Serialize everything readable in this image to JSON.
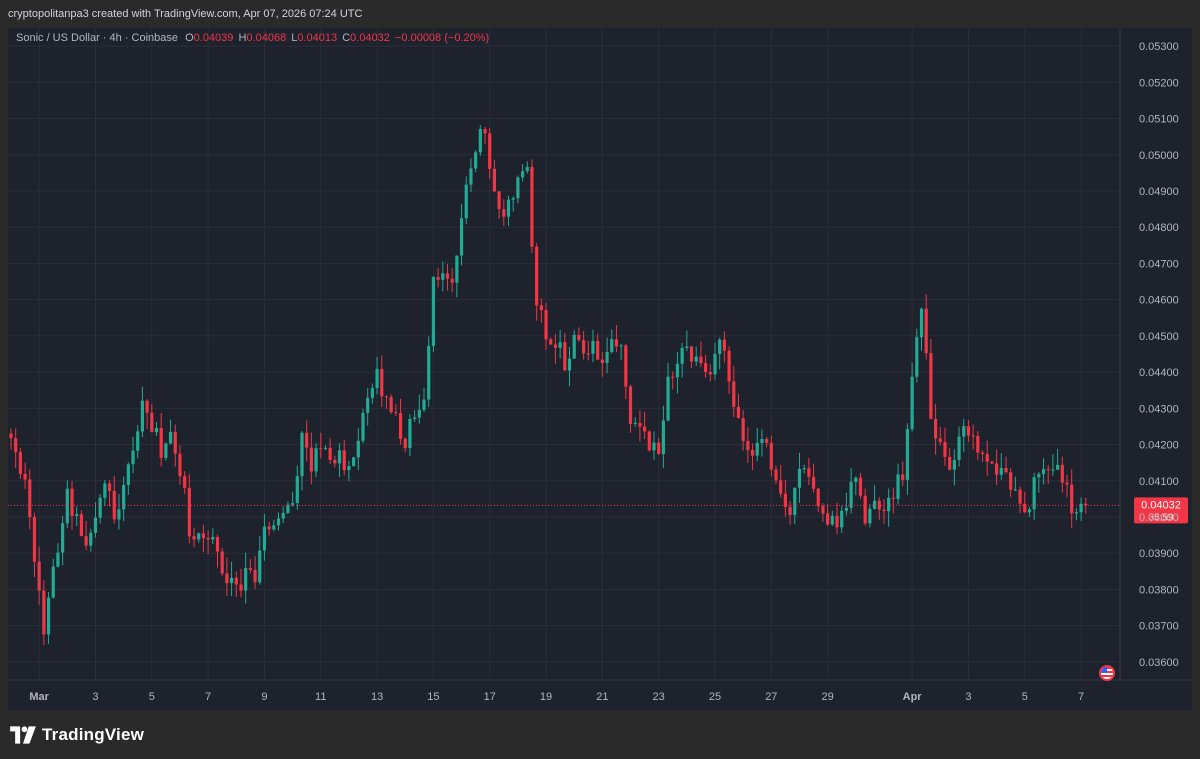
{
  "header": {
    "created_text": "cryptopolitanpa3 created with TradingView.com, Apr 07, 2026 07:24 UTC"
  },
  "legend": {
    "symbol": "Sonic / US Dollar · 4h · Coinbase",
    "open_label": "O",
    "open": "0.04039",
    "high_label": "H",
    "high": "0.04068",
    "low_label": "L",
    "low": "0.04013",
    "close_label": "C",
    "close": "0.04032",
    "change": "−0.00008 (−0.20%)"
  },
  "price_tag": {
    "price": "0.04032",
    "countdown": "35:59"
  },
  "brand": {
    "name": "TradingView"
  },
  "colors": {
    "up": "#22ab94",
    "down": "#f23645",
    "grid": "#2a2e39",
    "background": "#1e222d",
    "axis_text": "#b2b5be"
  },
  "chart_data": {
    "type": "candlestick",
    "ylim": [
      0.0355,
      0.0535
    ],
    "y_ticks": [
      "0.03600",
      "0.03700",
      "0.03800",
      "0.03900",
      "0.04000",
      "0.04100",
      "0.04200",
      "0.04300",
      "0.04400",
      "0.04500",
      "0.04600",
      "0.04700",
      "0.04800",
      "0.04900",
      "0.05000",
      "0.05100",
      "0.05200",
      "0.05300"
    ],
    "x_ticks": [
      "Mar",
      "3",
      "5",
      "7",
      "9",
      "11",
      "13",
      "15",
      "17",
      "19",
      "21",
      "23",
      "25",
      "27",
      "29",
      "Apr",
      "3",
      "5",
      "7"
    ],
    "x_tick_dates": [
      "2026-03-01",
      "2026-03-03",
      "2026-03-05",
      "2026-03-07",
      "2026-03-09",
      "2026-03-11",
      "2026-03-13",
      "2026-03-15",
      "2026-03-17",
      "2026-03-19",
      "2026-03-21",
      "2026-03-23",
      "2026-03-25",
      "2026-03-27",
      "2026-03-29",
      "2026-04-01",
      "2026-04-03",
      "2026-04-05",
      "2026-04-07"
    ],
    "first_candle_date": "2026-02-28T00:00",
    "interval_hours": 4,
    "current_price": 0.04032,
    "close_path": [
      [
        "2026-02-28T00:00",
        0.0422
      ],
      [
        "2026-02-28T08:00",
        0.0413
      ],
      [
        "2026-02-28T16:00",
        0.0402
      ],
      [
        "2026-03-01T00:00",
        0.0378
      ],
      [
        "2026-03-01T04:00",
        0.0369
      ],
      [
        "2026-03-01T08:00",
        0.0376
      ],
      [
        "2026-03-01T16:00",
        0.0392
      ],
      [
        "2026-03-02T00:00",
        0.0407
      ],
      [
        "2026-03-02T08:00",
        0.0399
      ],
      [
        "2026-03-02T16:00",
        0.039
      ],
      [
        "2026-03-03T00:00",
        0.0397
      ],
      [
        "2026-03-03T08:00",
        0.041
      ],
      [
        "2026-03-03T16:00",
        0.04
      ],
      [
        "2026-03-04T00:00",
        0.0408
      ],
      [
        "2026-03-04T08:00",
        0.0421
      ],
      [
        "2026-03-04T16:00",
        0.0431
      ],
      [
        "2026-03-05T00:00",
        0.0426
      ],
      [
        "2026-03-05T08:00",
        0.0418
      ],
      [
        "2026-03-05T16:00",
        0.0421
      ],
      [
        "2026-03-06T00:00",
        0.0414
      ],
      [
        "2026-03-06T08:00",
        0.0397
      ],
      [
        "2026-03-06T16:00",
        0.0395
      ],
      [
        "2026-03-07T00:00",
        0.0396
      ],
      [
        "2026-03-07T08:00",
        0.0389
      ],
      [
        "2026-03-07T16:00",
        0.0383
      ],
      [
        "2026-03-08T00:00",
        0.0379
      ],
      [
        "2026-03-08T08:00",
        0.0384
      ],
      [
        "2026-03-08T16:00",
        0.0382
      ],
      [
        "2026-03-09T00:00",
        0.0395
      ],
      [
        "2026-03-09T08:00",
        0.0398
      ],
      [
        "2026-03-09T16:00",
        0.0401
      ],
      [
        "2026-03-10T00:00",
        0.0404
      ],
      [
        "2026-03-10T08:00",
        0.0423
      ],
      [
        "2026-03-10T16:00",
        0.0413
      ],
      [
        "2026-03-11T00:00",
        0.0421
      ],
      [
        "2026-03-11T08:00",
        0.0416
      ],
      [
        "2026-03-11T16:00",
        0.0418
      ],
      [
        "2026-03-12T00:00",
        0.0412
      ],
      [
        "2026-03-12T08:00",
        0.0422
      ],
      [
        "2026-03-12T16:00",
        0.0435
      ],
      [
        "2026-03-13T00:00",
        0.0439
      ],
      [
        "2026-03-13T08:00",
        0.0432
      ],
      [
        "2026-03-13T16:00",
        0.0427
      ],
      [
        "2026-03-14T00:00",
        0.0421
      ],
      [
        "2026-03-14T08:00",
        0.0428
      ],
      [
        "2026-03-14T16:00",
        0.0435
      ],
      [
        "2026-03-15T00:00",
        0.0465
      ],
      [
        "2026-03-15T08:00",
        0.0467
      ],
      [
        "2026-03-15T16:00",
        0.0462
      ],
      [
        "2026-03-16T00:00",
        0.0482
      ],
      [
        "2026-03-16T08:00",
        0.0498
      ],
      [
        "2026-03-16T16:00",
        0.0509
      ],
      [
        "2026-03-17T00:00",
        0.0497
      ],
      [
        "2026-03-17T08:00",
        0.0482
      ],
      [
        "2026-03-17T16:00",
        0.0485
      ],
      [
        "2026-03-18T00:00",
        0.0493
      ],
      [
        "2026-03-18T08:00",
        0.0494
      ],
      [
        "2026-03-18T16:00",
        0.046
      ],
      [
        "2026-03-19T00:00",
        0.0452
      ],
      [
        "2026-03-19T08:00",
        0.0449
      ],
      [
        "2026-03-19T16:00",
        0.0443
      ],
      [
        "2026-03-20T00:00",
        0.0449
      ],
      [
        "2026-03-20T08:00",
        0.0445
      ],
      [
        "2026-03-20T16:00",
        0.0448
      ],
      [
        "2026-03-21T00:00",
        0.0442
      ],
      [
        "2026-03-21T08:00",
        0.0449
      ],
      [
        "2026-03-21T16:00",
        0.0448
      ],
      [
        "2026-03-22T00:00",
        0.0428
      ],
      [
        "2026-03-22T08:00",
        0.0425
      ],
      [
        "2026-03-22T16:00",
        0.0421
      ],
      [
        "2026-03-23T00:00",
        0.0416
      ],
      [
        "2026-03-23T08:00",
        0.0437
      ],
      [
        "2026-03-23T16:00",
        0.0441
      ],
      [
        "2026-03-24T00:00",
        0.0448
      ],
      [
        "2026-03-24T08:00",
        0.0442
      ],
      [
        "2026-03-24T16:00",
        0.0438
      ],
      [
        "2026-03-25T00:00",
        0.0445
      ],
      [
        "2026-03-25T08:00",
        0.0448
      ],
      [
        "2026-03-25T16:00",
        0.0432
      ],
      [
        "2026-03-26T00:00",
        0.0421
      ],
      [
        "2026-03-26T08:00",
        0.0415
      ],
      [
        "2026-03-26T16:00",
        0.0424
      ],
      [
        "2026-03-27T00:00",
        0.0413
      ],
      [
        "2026-03-27T08:00",
        0.0404
      ],
      [
        "2026-03-27T16:00",
        0.0399
      ],
      [
        "2026-03-28T00:00",
        0.0416
      ],
      [
        "2026-03-28T08:00",
        0.041
      ],
      [
        "2026-03-28T16:00",
        0.0404
      ],
      [
        "2026-03-29T00:00",
        0.0399
      ],
      [
        "2026-03-29T08:00",
        0.0398
      ],
      [
        "2026-03-29T16:00",
        0.0405
      ],
      [
        "2026-03-30T00:00",
        0.0409
      ],
      [
        "2026-03-30T08:00",
        0.04
      ],
      [
        "2026-03-30T16:00",
        0.0405
      ],
      [
        "2026-03-31T00:00",
        0.0403
      ],
      [
        "2026-03-31T08:00",
        0.0408
      ],
      [
        "2026-03-31T16:00",
        0.0412
      ],
      [
        "2026-04-01T00:00",
        0.044
      ],
      [
        "2026-04-01T08:00",
        0.046
      ],
      [
        "2026-04-01T16:00",
        0.043
      ],
      [
        "2026-04-02T00:00",
        0.0418
      ],
      [
        "2026-04-02T08:00",
        0.0416
      ],
      [
        "2026-04-02T16:00",
        0.042
      ],
      [
        "2026-04-03T00:00",
        0.0425
      ],
      [
        "2026-04-03T08:00",
        0.0417
      ],
      [
        "2026-04-03T16:00",
        0.0415
      ],
      [
        "2026-04-04T00:00",
        0.0413
      ],
      [
        "2026-04-04T08:00",
        0.0412
      ],
      [
        "2026-04-04T16:00",
        0.0405
      ],
      [
        "2026-04-05T00:00",
        0.04
      ],
      [
        "2026-04-05T08:00",
        0.0408
      ],
      [
        "2026-04-05T16:00",
        0.0413
      ],
      [
        "2026-04-06T00:00",
        0.0416
      ],
      [
        "2026-04-06T08:00",
        0.0412
      ],
      [
        "2026-04-06T16:00",
        0.0401
      ],
      [
        "2026-04-07T04:00",
        0.0403
      ]
    ]
  }
}
